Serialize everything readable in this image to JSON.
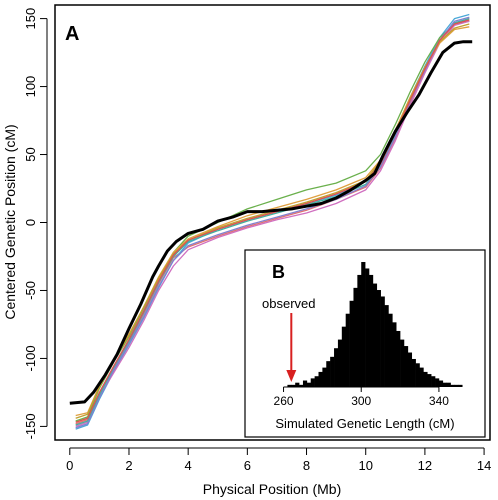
{
  "chart_data": [
    {
      "panel_label": "A",
      "type": "line",
      "xlabel": "Physical Position (Mb)",
      "ylabel": "Centered Genetic Position (cM)",
      "xlim": [
        -0.5,
        14.2
      ],
      "ylim": [
        -160,
        160
      ],
      "xticks": [
        0,
        2,
        4,
        6,
        8,
        10,
        12,
        14
      ],
      "yticks": [
        -150,
        -100,
        -50,
        0,
        50,
        100,
        150
      ],
      "grid": false,
      "series": [
        {
          "color": "#000000",
          "width": 3,
          "x": [
            0,
            0.5,
            0.8,
            1.2,
            1.6,
            2.0,
            2.4,
            2.8,
            3.0,
            3.3,
            3.6,
            4.0,
            4.5,
            5.0,
            5.5,
            6.0,
            6.5,
            7.0,
            7.5,
            8.0,
            8.5,
            9.0,
            9.5,
            10.0,
            10.3,
            10.6,
            11.0,
            11.4,
            11.8,
            12.2,
            12.6,
            13.0,
            13.3,
            13.6
          ],
          "y": [
            -133,
            -132,
            -125,
            -112,
            -97,
            -78,
            -60,
            -40,
            -32,
            -21,
            -14,
            -8,
            -5,
            1,
            4,
            8,
            8,
            9,
            10,
            12,
            14,
            18,
            24,
            31,
            36,
            50,
            67,
            81,
            94,
            110,
            125,
            132,
            133,
            133
          ]
        },
        {
          "color": "#e07070",
          "width": 1.3,
          "x": [
            0.2,
            0.6,
            1,
            1.5,
            2,
            2.5,
            3,
            3.5,
            4,
            5,
            6,
            7,
            8,
            9,
            10,
            10.5,
            11,
            11.5,
            12,
            12.5,
            13,
            13.5
          ],
          "y": [
            -148,
            -145,
            -126,
            -107,
            -88,
            -67,
            -45,
            -26,
            -18,
            -10,
            -3,
            3,
            9,
            17,
            26,
            40,
            62,
            88,
            112,
            134,
            146,
            150
          ]
        },
        {
          "color": "#4aa8d8",
          "width": 1.3,
          "x": [
            0.2,
            0.6,
            1,
            1.5,
            2,
            2.5,
            3,
            3.5,
            4,
            5,
            6,
            7,
            8,
            9,
            10,
            10.5,
            11,
            11.5,
            12,
            12.5,
            13,
            13.5
          ],
          "y": [
            -152,
            -149,
            -130,
            -109,
            -90,
            -70,
            -48,
            -28,
            -15,
            -5,
            2,
            8,
            14,
            20,
            30,
            44,
            66,
            92,
            115,
            136,
            150,
            153
          ]
        },
        {
          "color": "#6ab04c",
          "width": 1.3,
          "x": [
            0.2,
            0.6,
            1,
            1.5,
            2,
            2.5,
            3,
            3.5,
            4,
            5,
            6,
            7,
            8,
            9,
            10,
            10.5,
            11,
            11.5,
            12,
            12.5,
            13,
            13.5
          ],
          "y": [
            -146,
            -143,
            -122,
            -102,
            -84,
            -63,
            -41,
            -22,
            -10,
            0,
            10,
            17,
            24,
            29,
            38,
            50,
            72,
            96,
            118,
            136,
            146,
            148
          ]
        },
        {
          "color": "#d070c0",
          "width": 1.3,
          "x": [
            0.2,
            0.6,
            1,
            1.5,
            2,
            2.5,
            3,
            3.5,
            4,
            5,
            6,
            7,
            8,
            9,
            10,
            10.5,
            11,
            11.5,
            12,
            12.5,
            13,
            13.5
          ],
          "y": [
            -150,
            -147,
            -128,
            -110,
            -92,
            -72,
            -50,
            -32,
            -20,
            -11,
            -4,
            2,
            7,
            14,
            24,
            38,
            60,
            86,
            110,
            132,
            145,
            148
          ]
        },
        {
          "color": "#e0a040",
          "width": 1.3,
          "x": [
            0.2,
            0.6,
            1,
            1.5,
            2,
            2.5,
            3,
            3.5,
            4,
            5,
            6,
            7,
            8,
            9,
            10,
            10.5,
            11,
            11.5,
            12,
            12.5,
            13,
            13.5
          ],
          "y": [
            -142,
            -140,
            -120,
            -100,
            -82,
            -62,
            -40,
            -22,
            -12,
            -3,
            5,
            11,
            17,
            24,
            33,
            46,
            68,
            92,
            114,
            132,
            142,
            144
          ]
        },
        {
          "color": "#40b0a0",
          "width": 1.3,
          "x": [
            0.2,
            0.6,
            1,
            1.5,
            2,
            2.5,
            3,
            3.5,
            4,
            5,
            6,
            7,
            8,
            9,
            10,
            10.5,
            11,
            11.5,
            12,
            12.5,
            13,
            13.5
          ],
          "y": [
            -149,
            -146,
            -127,
            -106,
            -87,
            -66,
            -44,
            -25,
            -14,
            -6,
            1,
            7,
            13,
            19,
            28,
            42,
            64,
            90,
            113,
            134,
            147,
            150
          ]
        },
        {
          "color": "#8080d0",
          "width": 1.3,
          "x": [
            0.2,
            0.6,
            1,
            1.5,
            2,
            2.5,
            3,
            3.5,
            4,
            5,
            6,
            7,
            8,
            9,
            10,
            10.5,
            11,
            11.5,
            12,
            12.5,
            13,
            13.5
          ],
          "y": [
            -151,
            -148,
            -129,
            -108,
            -89,
            -69,
            -47,
            -28,
            -17,
            -9,
            -2,
            4,
            10,
            17,
            27,
            41,
            63,
            89,
            112,
            134,
            148,
            151
          ]
        },
        {
          "color": "#c0a030",
          "width": 1.3,
          "x": [
            0.2,
            0.6,
            1,
            1.5,
            2,
            2.5,
            3,
            3.5,
            4,
            5,
            6,
            7,
            8,
            9,
            10,
            10.5,
            11,
            11.5,
            12,
            12.5,
            13,
            13.5
          ],
          "y": [
            -144,
            -141,
            -121,
            -101,
            -83,
            -62,
            -41,
            -23,
            -13,
            -4,
            3,
            9,
            15,
            22,
            31,
            45,
            67,
            91,
            114,
            133,
            143,
            146
          ]
        },
        {
          "color": "#e05050",
          "width": 1.3,
          "x": [
            0.2,
            0.6,
            1,
            1.5,
            2,
            2.5,
            3,
            3.5,
            4,
            5,
            6,
            7,
            8,
            9,
            10,
            10.5,
            11,
            11.5,
            12,
            12.5,
            13,
            13.5
          ],
          "y": [
            -147,
            -144,
            -125,
            -105,
            -86,
            -65,
            -43,
            -24,
            -13,
            -5,
            2,
            8,
            14,
            21,
            30,
            43,
            66,
            90,
            113,
            134,
            146,
            149
          ]
        }
      ]
    },
    {
      "panel_label": "B",
      "type": "bar",
      "xlabel": "Simulated Genetic Length (cM)",
      "ylabel": "",
      "xlim": [
        252,
        356
      ],
      "xticks": [
        260,
        300,
        340
      ],
      "annotation": {
        "text": "observed",
        "x": 264,
        "color": "#d82020"
      },
      "bin_width": 2,
      "bin_starts": [
        262,
        264,
        266,
        268,
        270,
        272,
        274,
        276,
        278,
        280,
        282,
        284,
        286,
        288,
        290,
        292,
        294,
        296,
        298,
        300,
        302,
        304,
        306,
        308,
        310,
        312,
        314,
        316,
        318,
        320,
        322,
        324,
        326,
        328,
        330,
        332,
        334,
        336,
        338,
        340,
        342,
        344,
        346,
        348,
        350
      ],
      "counts": [
        1,
        1,
        2,
        1,
        3,
        2,
        4,
        5,
        7,
        9,
        12,
        14,
        18,
        22,
        28,
        34,
        40,
        46,
        52,
        58,
        55,
        52,
        48,
        45,
        42,
        38,
        34,
        30,
        26,
        22,
        19,
        16,
        13,
        11,
        9,
        7,
        6,
        5,
        4,
        3,
        2,
        2,
        1,
        1,
        1
      ]
    }
  ]
}
